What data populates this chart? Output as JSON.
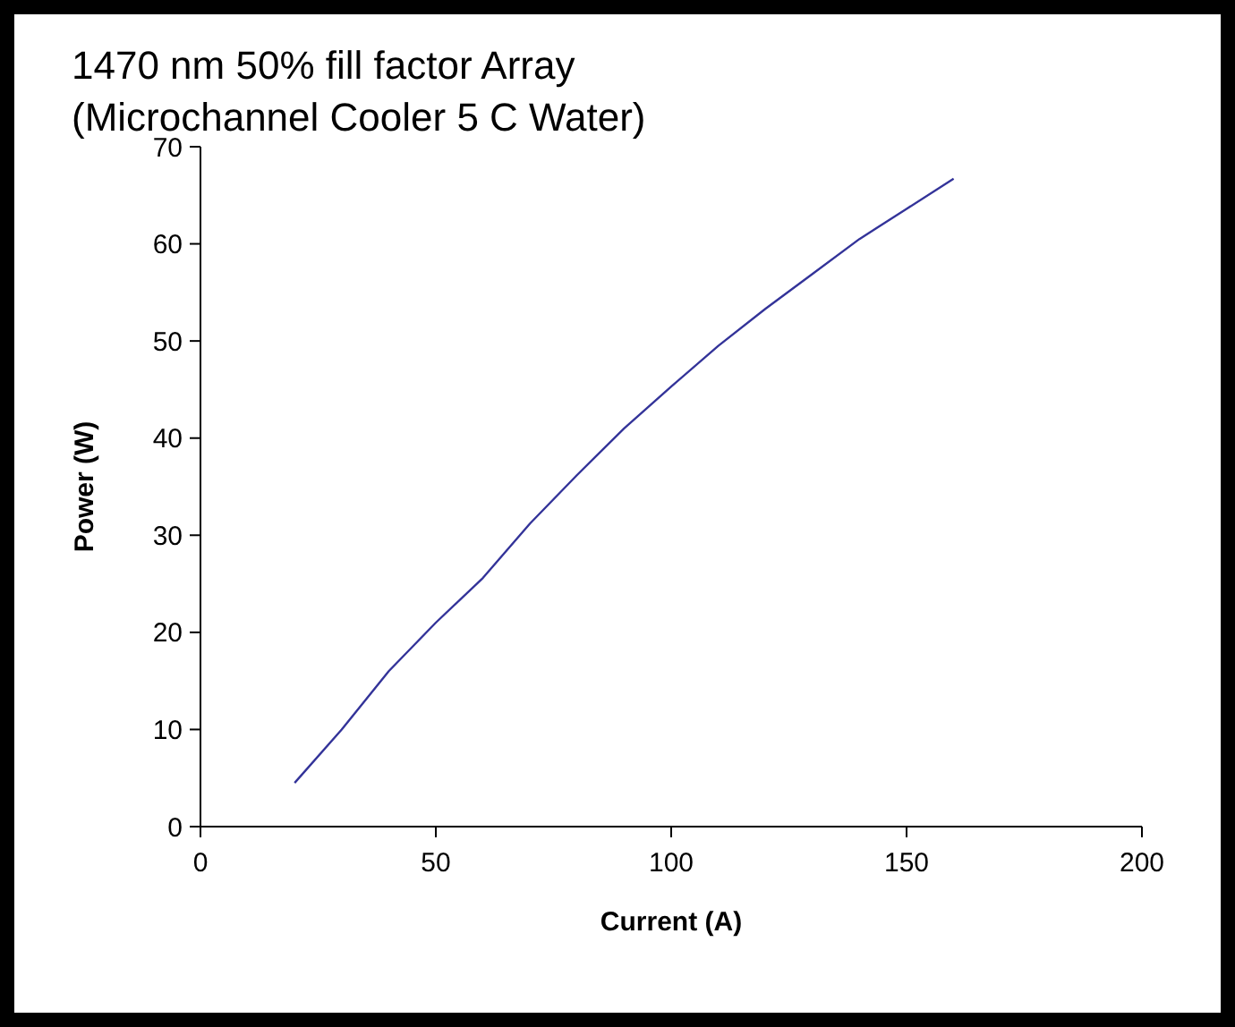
{
  "chart_data": {
    "type": "line",
    "title": "1470 nm 50% fill factor Array\n(Microchannel Cooler 5 C Water)",
    "xlabel": "Current (A)",
    "ylabel": "Power (W)",
    "x": [
      20,
      30,
      40,
      50,
      60,
      70,
      80,
      90,
      100,
      110,
      120,
      130,
      140,
      150,
      160
    ],
    "series": [
      {
        "color": "#333399",
        "values": [
          4.5,
          10.0,
          16.0,
          21.0,
          25.6,
          31.2,
          36.2,
          41.0,
          45.3,
          49.5,
          53.3,
          56.9,
          60.5,
          63.6,
          66.7
        ]
      }
    ],
    "xlim": [
      0,
      200
    ],
    "xticks": [
      0,
      50,
      100,
      150,
      200
    ],
    "ylim": [
      0,
      70
    ],
    "yticks": [
      0,
      10,
      20,
      30,
      40,
      50,
      60,
      70
    ],
    "marker": "none",
    "line_style": "solid"
  }
}
